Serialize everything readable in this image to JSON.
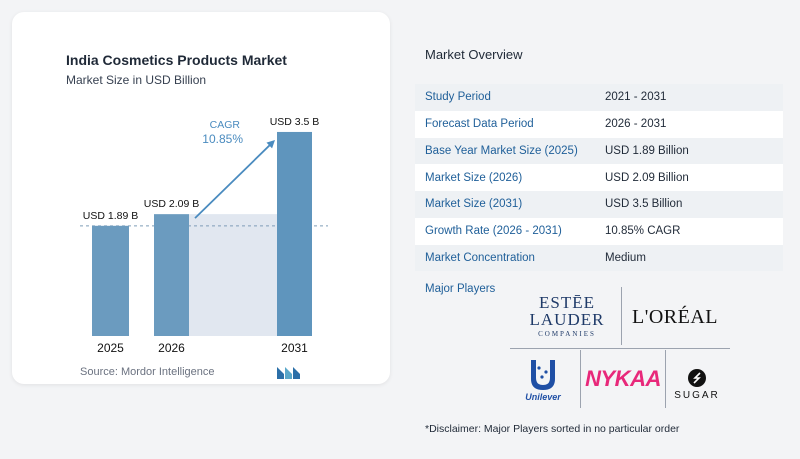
{
  "chart_data": {
    "type": "bar",
    "title": "India Cosmetics Products Market",
    "subtitle": "Market Size in USD Billion",
    "categories": [
      "2025",
      "2026",
      "2031"
    ],
    "values": [
      1.89,
      2.09,
      3.5
    ],
    "data_labels": [
      "USD 1.89 B",
      "USD 2.09 B",
      "USD 3.5 B"
    ],
    "cagr_label": "CAGR",
    "cagr_value": "10.85%",
    "colors": {
      "bar": "#6b9bbf",
      "bar_last": "#5f95bd",
      "shade": "#e1e7f0",
      "accent": "#4a8bbf"
    }
  },
  "source": "Source:  Mordor Intelligence",
  "overview": {
    "title": "Market Overview",
    "rows": [
      {
        "label": "Study Period",
        "value": "2021 - 2031"
      },
      {
        "label": "Forecast Data Period",
        "value": "2026 - 2031"
      },
      {
        "label": "Base Year Market Size (2025)",
        "value": "USD 1.89 Billion"
      },
      {
        "label": "Market Size (2026)",
        "value": "USD 2.09 Billion"
      },
      {
        "label": "Market Size (2031)",
        "value": "USD 3.5 Billion"
      },
      {
        "label": "Growth Rate (2026 - 2031)",
        "value": "10.85% CAGR"
      },
      {
        "label": "Market Concentration",
        "value": "Medium"
      }
    ]
  },
  "players": {
    "label": "Major Players",
    "logos": {
      "estee_line1": "ESTĒE",
      "estee_line2": "LAUDER",
      "estee_line3": "COMPANIES",
      "loreal": "L'ORÉAL",
      "unilever": "Unilever",
      "nykaa": "NYKAA",
      "sugar": "SUGAR"
    }
  },
  "disclaimer": "*Disclaimer: Major Players sorted in no particular order"
}
